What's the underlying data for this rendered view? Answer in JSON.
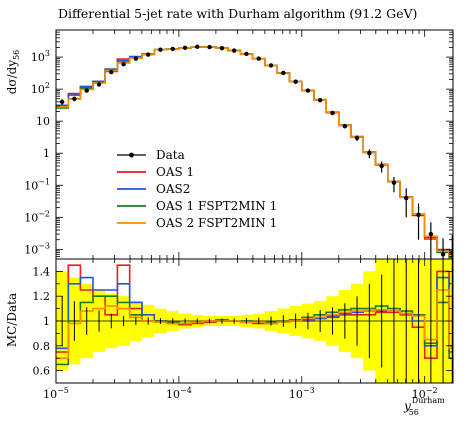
{
  "chart_data": {
    "type": "line",
    "title": "Differential 5-jet rate with Durham algorithm (91.2 GeV)",
    "xlabel": "y_56^Durham",
    "ylabel": "dσ/dy_56",
    "ratio_ylabel": "MC/Data",
    "x_scale": "log",
    "y_scale": "log",
    "xlim": [
      1e-05,
      0.017
    ],
    "ylim": [
      0.0005,
      7000
    ],
    "ratio_ylim": [
      0.5,
      1.5
    ],
    "x_ticks": [
      "10^-5",
      "10^-4",
      "10^-3",
      "10^-2"
    ],
    "y_ticks": [
      "10^-3",
      "10^-2",
      "10^-1",
      "1",
      "10",
      "10^2",
      "10^3"
    ],
    "ratio_ticks": [
      "0.6",
      "0.8",
      "1",
      "1.2",
      "1.4"
    ],
    "legend_position": "middle-left",
    "bin_edges": [
      1e-05,
      1.26e-05,
      1.58e-05,
      2e-05,
      2.51e-05,
      3.16e-05,
      3.98e-05,
      5.01e-05,
      6.31e-05,
      7.94e-05,
      0.0001,
      0.000126,
      0.000158,
      0.0002,
      0.000251,
      0.000316,
      0.000398,
      0.000501,
      0.000631,
      0.000794,
      0.001,
      0.00126,
      0.00158,
      0.002,
      0.00251,
      0.00316,
      0.00398,
      0.00501,
      0.00631,
      0.00794,
      0.01,
      0.0126,
      0.0158,
      0.0178
    ],
    "data": {
      "name": "Data",
      "color": "#000000",
      "y": [
        40,
        50,
        90,
        140,
        340,
        600,
        900,
        1200,
        1700,
        1800,
        1950,
        2100,
        2050,
        1900,
        1600,
        1250,
        900,
        550,
        320,
        170,
        90,
        45,
        18,
        7,
        3,
        1,
        0.4,
        0.12,
        0.04,
        0.012,
        0.003,
        0.0007,
        0.0008
      ],
      "err_low": [
        8,
        8,
        10,
        12,
        20,
        25,
        30,
        35,
        40,
        40,
        40,
        40,
        40,
        40,
        35,
        30,
        25,
        20,
        15,
        10,
        6,
        4,
        2,
        1,
        0.6,
        0.3,
        0.15,
        0.06,
        0.03,
        0.01,
        0.0025,
        0.0006,
        0.0007
      ],
      "err_high": [
        8,
        8,
        10,
        12,
        20,
        25,
        30,
        35,
        40,
        40,
        40,
        40,
        40,
        40,
        35,
        30,
        25,
        20,
        15,
        10,
        6,
        4,
        2,
        1,
        0.6,
        0.3,
        0.15,
        0.06,
        0.04,
        0.015,
        0.004,
        0.0015,
        0.002
      ]
    },
    "series": [
      {
        "name": "OAS 1",
        "color": "#ee1c1c",
        "ratio": [
          0.75,
          1.45,
          1.25,
          1.2,
          1.05,
          1.45,
          1.1,
          1.0,
          1.0,
          0.98,
          0.97,
          0.98,
          0.99,
          1.0,
          1.0,
          0.99,
          0.98,
          0.98,
          0.99,
          1.0,
          1.0,
          1.02,
          1.03,
          1.05,
          1.05,
          1.05,
          1.07,
          1.07,
          1.05,
          0.95,
          0.7,
          1.4,
          0.75
        ]
      },
      {
        "name": "OAS2",
        "color": "#2255dd",
        "ratio": [
          0.78,
          1.3,
          1.35,
          1.25,
          1.25,
          1.3,
          1.15,
          1.05,
          1.0,
          0.99,
          0.98,
          0.99,
          1.0,
          1.01,
          1.0,
          1.0,
          0.99,
          0.98,
          0.99,
          1.0,
          1.01,
          1.02,
          1.04,
          1.06,
          1.07,
          1.08,
          1.08,
          1.08,
          1.06,
          1.0,
          0.8,
          1.35,
          0.8
        ]
      },
      {
        "name": "OAS 1 FSPT2MIN 1",
        "color": "#227722",
        "ratio": [
          0.65,
          1.0,
          1.15,
          1.2,
          1.2,
          1.15,
          1.05,
          1.0,
          1.0,
          0.99,
          0.98,
          0.99,
          1.0,
          1.0,
          1.0,
          1.0,
          0.99,
          0.99,
          1.0,
          1.01,
          1.03,
          1.05,
          1.07,
          1.09,
          1.1,
          1.1,
          1.12,
          1.1,
          1.08,
          1.05,
          0.82,
          1.15,
          0.7
        ]
      },
      {
        "name": "OAS 2 FSPT2MIN 1",
        "color": "#ff8c00",
        "ratio": [
          0.7,
          0.98,
          1.08,
          1.1,
          1.12,
          1.1,
          1.03,
          1.0,
          0.99,
          0.98,
          0.98,
          0.99,
          1.0,
          1.0,
          1.0,
          0.99,
          0.99,
          0.98,
          0.99,
          1.0,
          1.02,
          1.03,
          1.05,
          1.07,
          1.08,
          1.08,
          1.09,
          1.08,
          1.06,
          1.04,
          0.85,
          1.25,
          0.78
        ]
      }
    ],
    "uncertainty_band": {
      "color": "#ffff00",
      "inner_halfwidth": [
        0.25,
        0.2,
        0.16,
        0.14,
        0.12,
        0.1,
        0.08,
        0.06,
        0.05,
        0.04,
        0.03,
        0.025,
        0.02,
        0.02,
        0.02,
        0.025,
        0.03,
        0.04,
        0.05,
        0.06,
        0.07,
        0.08,
        0.1,
        0.12,
        0.15,
        0.2,
        0.25,
        0.3,
        0.35,
        0.4,
        0.4,
        0.4,
        0.4
      ],
      "outer_halfwidth": [
        0.4,
        0.35,
        0.3,
        0.25,
        0.22,
        0.2,
        0.16,
        0.13,
        0.1,
        0.08,
        0.06,
        0.05,
        0.04,
        0.04,
        0.04,
        0.05,
        0.06,
        0.08,
        0.1,
        0.12,
        0.14,
        0.16,
        0.2,
        0.25,
        0.3,
        0.4,
        0.5,
        0.5,
        0.5,
        0.5,
        0.5,
        0.5,
        0.5
      ]
    }
  }
}
